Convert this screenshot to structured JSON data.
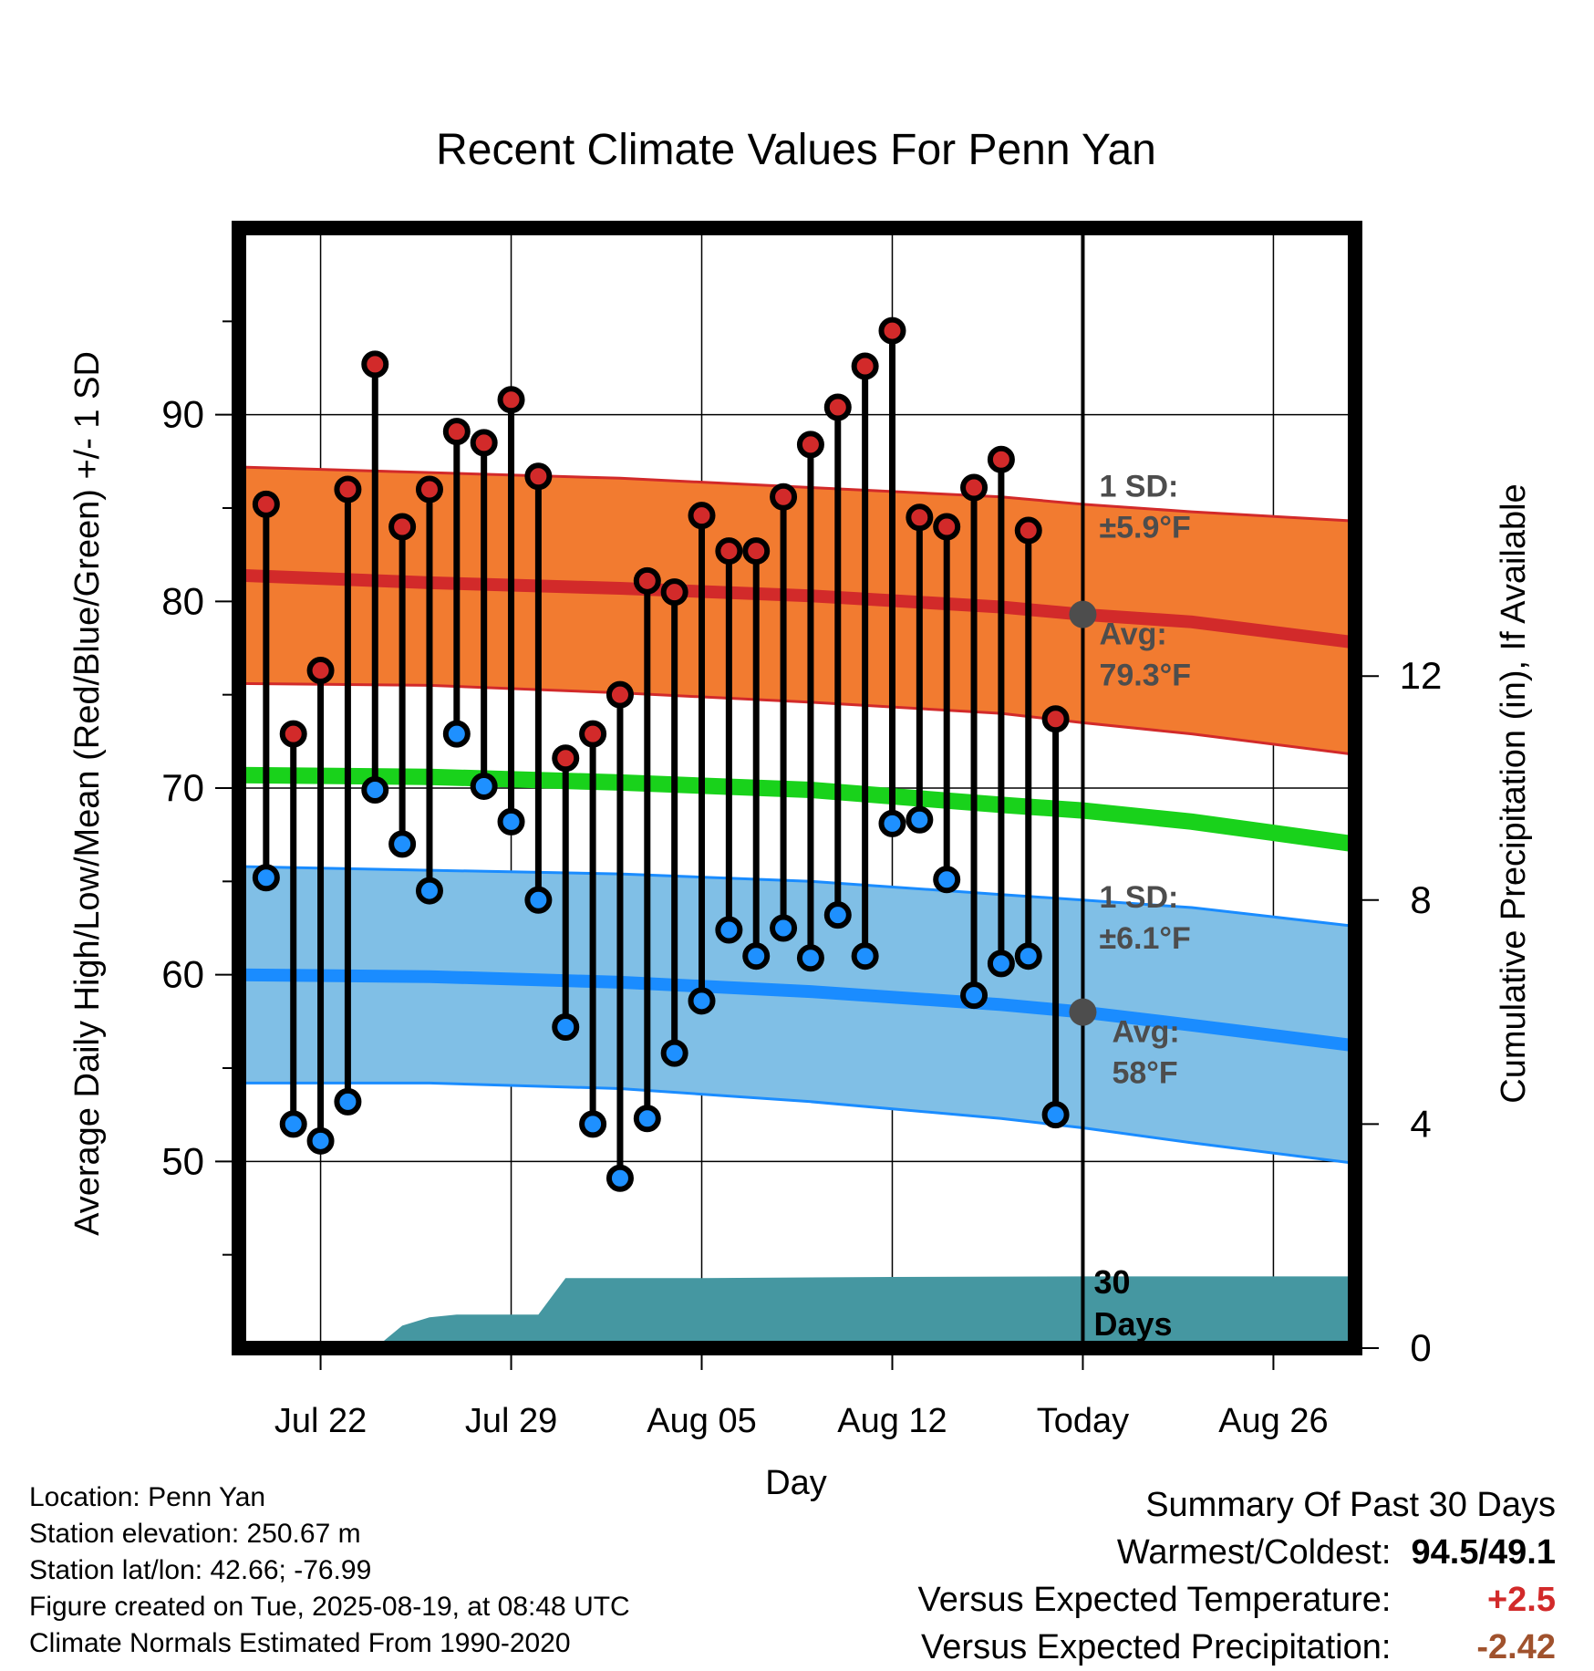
{
  "chart_data": {
    "type": "line",
    "title": "Recent Climate Values For Penn Yan",
    "xlabel": "Day",
    "ylabel": "Average Daily High/Low/Mean (Red/Blue/Green) +/- 1 SD",
    "y2label": "Cumulative Precipitation (in), If Available",
    "x_range": [
      "2025-07-19",
      "2025-08-29"
    ],
    "ylim": [
      40,
      100
    ],
    "y2lim": [
      0,
      20
    ],
    "x_tick_dates": [
      "2025-07-22",
      "2025-07-29",
      "2025-08-05",
      "2025-08-12",
      "2025-08-19",
      "2025-08-26"
    ],
    "x_tick_labels": [
      "Jul 22",
      "Jul 29",
      "Aug 05",
      "Aug 12",
      "Today",
      "Aug 26"
    ],
    "y_ticks": [
      50,
      60,
      70,
      80,
      90
    ],
    "y2_ticks": [
      0,
      4,
      8,
      12
    ],
    "grid": true,
    "today": "2025-08-19",
    "today_label": "30 Days",
    "dates": [
      "2025-07-20",
      "2025-07-21",
      "2025-07-22",
      "2025-07-23",
      "2025-07-24",
      "2025-07-25",
      "2025-07-26",
      "2025-07-27",
      "2025-07-28",
      "2025-07-29",
      "2025-07-30",
      "2025-07-31",
      "2025-08-01",
      "2025-08-02",
      "2025-08-03",
      "2025-08-04",
      "2025-08-05",
      "2025-08-06",
      "2025-08-07",
      "2025-08-08",
      "2025-08-09",
      "2025-08-10",
      "2025-08-11",
      "2025-08-12",
      "2025-08-13",
      "2025-08-14",
      "2025-08-15",
      "2025-08-16",
      "2025-08-17",
      "2025-08-18"
    ],
    "daily_high": [
      85.2,
      72.9,
      76.3,
      86.0,
      92.7,
      84.0,
      86.0,
      89.1,
      88.5,
      90.8,
      86.7,
      71.6,
      72.9,
      75.0,
      81.1,
      80.5,
      84.6,
      82.7,
      82.7,
      85.6,
      88.4,
      90.4,
      92.6,
      94.5,
      84.5,
      84.0,
      86.1,
      87.6,
      83.8,
      73.7
    ],
    "daily_low": [
      65.2,
      52.0,
      51.1,
      53.2,
      69.9,
      67.0,
      64.5,
      72.9,
      70.1,
      68.2,
      64.0,
      57.2,
      52.0,
      49.1,
      52.3,
      55.8,
      58.6,
      62.4,
      61.0,
      62.5,
      60.9,
      63.2,
      61.0,
      68.1,
      68.3,
      65.1,
      58.9,
      60.6,
      61.0,
      52.5
    ],
    "normal_dates": [
      "2025-07-19",
      "2025-07-26",
      "2025-08-02",
      "2025-08-09",
      "2025-08-16",
      "2025-08-19",
      "2025-08-23",
      "2025-08-29"
    ],
    "normal_high": [
      81.4,
      81.0,
      80.7,
      80.3,
      79.7,
      79.3,
      78.9,
      77.8
    ],
    "normal_high_sd_upper": [
      87.2,
      86.9,
      86.6,
      86.1,
      85.6,
      85.2,
      84.8,
      84.3
    ],
    "normal_high_sd_lower": [
      75.6,
      75.5,
      75.1,
      74.6,
      74.0,
      73.5,
      72.9,
      71.8
    ],
    "normal_mean": [
      70.7,
      70.6,
      70.3,
      69.9,
      69.1,
      68.8,
      68.2,
      67.0
    ],
    "normal_low": [
      60.0,
      59.9,
      59.6,
      59.1,
      58.4,
      58.0,
      57.3,
      56.2
    ],
    "normal_low_sd_upper": [
      65.8,
      65.6,
      65.4,
      65.0,
      64.3,
      64.0,
      63.6,
      62.6
    ],
    "normal_low_sd_lower": [
      54.2,
      54.2,
      53.9,
      53.2,
      52.3,
      51.8,
      51.0,
      49.9
    ],
    "precip_dates": [
      "2025-07-24",
      "2025-07-25",
      "2025-07-26",
      "2025-07-27",
      "2025-07-28",
      "2025-07-29",
      "2025-07-30",
      "2025-07-31",
      "2025-08-05",
      "2025-08-12",
      "2025-08-19",
      "2025-08-29"
    ],
    "precip_cumulative": [
      0.0,
      0.4,
      0.55,
      0.6,
      0.6,
      0.6,
      0.6,
      1.25,
      1.25,
      1.27,
      1.28,
      1.28
    ],
    "annotations": {
      "high_sd_label": "1 SD:",
      "high_sd_value": "±5.9°F",
      "high_avg_label": "Avg:",
      "high_avg_value": "79.3°F",
      "low_sd_label": "1 SD:",
      "low_sd_value": "±6.1°F",
      "low_avg_label": "Avg:",
      "low_avg_value": "58°F"
    },
    "colors": {
      "high_band": "#f27b30",
      "high_line": "#d22a2a",
      "mean_line": "#19d21b",
      "low_band": "#80bfe6",
      "low_line": "#1a8cff",
      "high_dot": "#d22a2a",
      "low_dot": "#1e90ff",
      "precip": "#4597a1",
      "annotation": "#4d4d4d"
    }
  },
  "info": {
    "location": "Location: Penn Yan",
    "elevation": "Station elevation: 250.67 m",
    "latlon": "Station lat/lon: 42.66; -76.99",
    "created": "Figure created on Tue, 2025-08-19, at 08:48 UTC",
    "normals": "Climate Normals Estimated From 1990-2020"
  },
  "summary": {
    "title": "Summary Of Past 30 Days",
    "warmest_coldest_label": "Warmest/Coldest:",
    "warmest_coldest_value": "94.5/49.1",
    "temp_label": "Versus Expected Temperature:",
    "temp_value": "+2.5",
    "precip_label": "Versus Expected Precipitation:",
    "precip_value": "-2.42",
    "temp_color": "#d22a2a",
    "precip_color": "#a0522d"
  }
}
